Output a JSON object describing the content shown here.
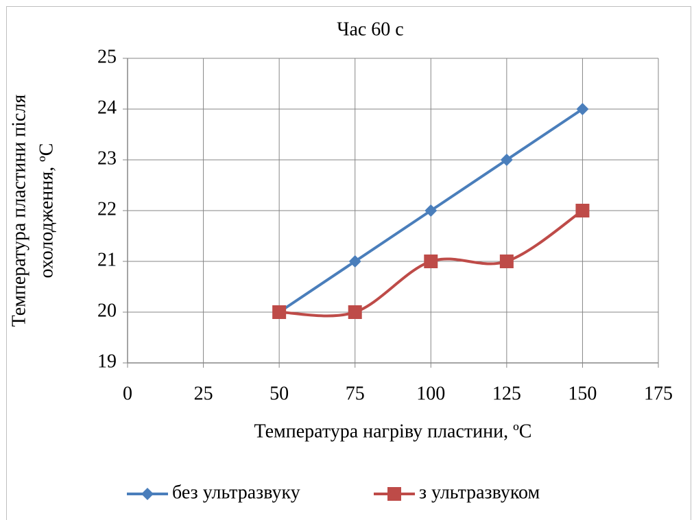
{
  "chart_data": {
    "type": "scatter",
    "title": "Час 60 с",
    "x_label": "Температура нагріву пластини, ºC",
    "y_label": [
      "Температура пластини після",
      "охолодження, ºC"
    ],
    "xlim": [
      0,
      175
    ],
    "xticks": [
      0,
      25,
      50,
      75,
      100,
      125,
      150,
      175
    ],
    "ylim": [
      19,
      25
    ],
    "yticks": [
      19,
      20,
      21,
      22,
      23,
      24,
      25
    ],
    "grid": true,
    "legend": "bottom",
    "x": [
      50,
      75,
      100,
      125,
      150
    ],
    "series": [
      {
        "name": "без ультразвуку",
        "color": "#4a7ebb",
        "marker": "diamond",
        "smooth": false,
        "values": [
          20,
          21,
          22,
          23,
          24
        ]
      },
      {
        "name": "з ультразвуком",
        "color": "#be4b48",
        "marker": "square",
        "smooth": true,
        "values": [
          20,
          20,
          21,
          21,
          22
        ]
      }
    ]
  }
}
